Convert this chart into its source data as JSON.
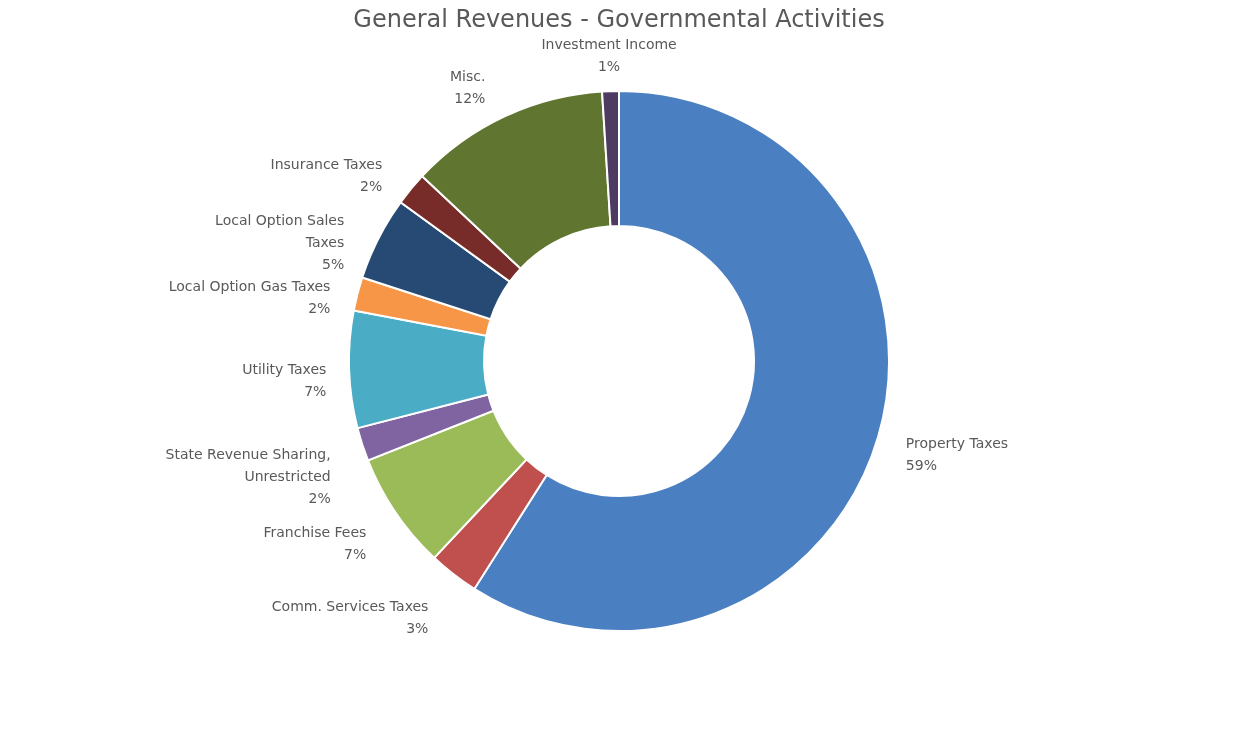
{
  "chart_data": {
    "type": "donut",
    "title": "General Revenues - Governmental Activities",
    "categories": [
      "Property Taxes",
      "Comm. Services Taxes",
      "Franchise Fees",
      "State Revenue Sharing, Unrestricted",
      "Utility Taxes",
      "Local Option Gas Taxes",
      "Local Option Sales Taxes",
      "Insurance Taxes",
      "Misc.",
      "Investment Income"
    ],
    "values": [
      59,
      3,
      7,
      2,
      7,
      2,
      5,
      2,
      12,
      1
    ],
    "value_labels": [
      "59%",
      "3%",
      "7%",
      "2%",
      "7%",
      "2%",
      "5%",
      "2%",
      "12%",
      "1%"
    ],
    "colors": [
      "#4a7fc1",
      "#c0504d",
      "#9bbb59",
      "#8064a2",
      "#4bacc6",
      "#f79646",
      "#264a73",
      "#772c2a",
      "#5f7530",
      "#4d3b62"
    ],
    "legend": false
  }
}
